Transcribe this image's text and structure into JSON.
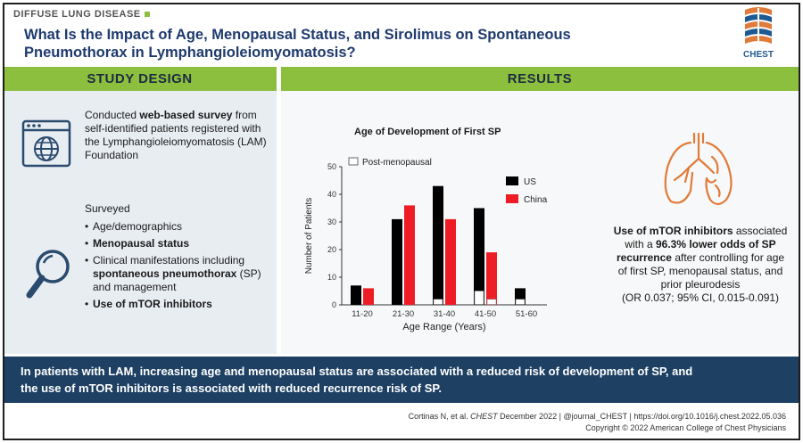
{
  "header": {
    "category": "DIFFUSE LUNG DISEASE",
    "title_line1": "What Is the Impact of Age, Menopausal Status, and Sirolimus on Spontaneous",
    "title_line2": "Pneumothorax in Lymphangioleiomyomatosis?",
    "logo_text": "CHEST"
  },
  "sections": {
    "study_design": "STUDY DESIGN",
    "results": "RESULTS"
  },
  "study_design": {
    "intro_plain": "Conducted ",
    "intro_bold": "web-based survey",
    "intro_rest": " from self-identified patients registered with the Lymphangioleiomyomatosis (LAM) Foundation",
    "surveyed_label": "Surveyed",
    "items": [
      {
        "plain": "Age/demographics",
        "bold": "",
        "plain_after": ""
      },
      {
        "plain": "",
        "bold": "Menopausal status",
        "plain_after": ""
      },
      {
        "plain": "Clinical manifestations including ",
        "bold": "spontaneous pneumothorax",
        "plain_after": " (SP) and management"
      },
      {
        "plain": "",
        "bold": "Use of mTOR inhibitors",
        "plain_after": ""
      }
    ]
  },
  "results": {
    "bold_line1": "Use of mTOR inhibitors",
    "plain1": " associated with a ",
    "bold_line2": "96.3% lower odds of SP recurrence",
    "plain2": " after controlling for age of first SP, menopausal status, and prior pleurodesis",
    "stats": "(OR 0.037; 95% CI, 0.015-0.091)"
  },
  "chart_data": {
    "type": "bar",
    "title": "Age of Development of First SP",
    "xlabel": "Age Range (Years)",
    "ylabel": "Number of Patients",
    "ylim": [
      0,
      50
    ],
    "yticks": [
      0,
      10,
      20,
      30,
      40,
      50
    ],
    "categories": [
      "11-20",
      "21-30",
      "31-40",
      "41-50",
      "51-60"
    ],
    "series": [
      {
        "name": "US",
        "color": "#000000",
        "values": [
          7,
          31,
          43,
          35,
          6
        ]
      },
      {
        "name": "China",
        "color": "#ee1c25",
        "values": [
          6,
          36,
          31,
          19,
          0
        ]
      }
    ],
    "post_menopausal": {
      "name": "Post-menopausal",
      "US": [
        0,
        0,
        2,
        5,
        2
      ],
      "China": [
        0,
        0,
        0,
        2,
        0
      ]
    },
    "legend_position": "top-right"
  },
  "conclusion": {
    "line1": "In patients with LAM, increasing age and menopausal status are associated with a reduced risk of development of SP, and",
    "line2": "the use of mTOR inhibitors is associated with reduced recurrence risk of SP."
  },
  "footer": {
    "authors": "Cortinas N, et al. ",
    "journal": "CHEST",
    "date": " December 2022",
    "separator": "  |  ",
    "handle": "@journal_CHEST",
    "doi": "https://doi.org/10.1016/j.chest.2022.05.036",
    "copyright": "Copyright © 2022 American College of Chest Physicians"
  }
}
